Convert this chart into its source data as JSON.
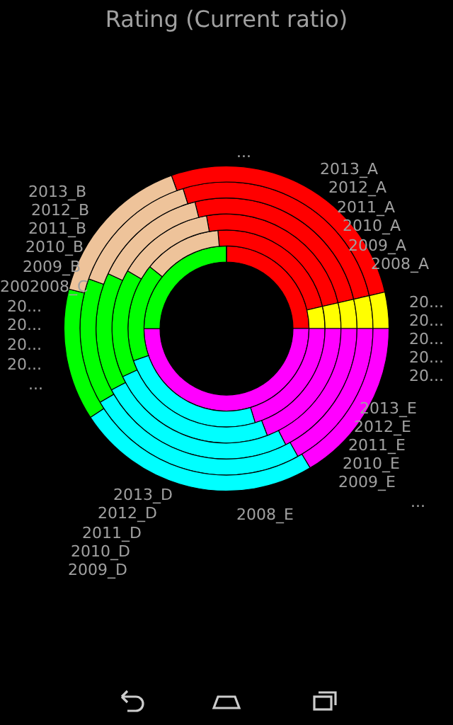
{
  "chart_data": {
    "type": "donut",
    "title": "Rating (Current ratio)",
    "categories": [
      null,
      null,
      null,
      null,
      null,
      null
    ],
    "colors": [
      "#ff0000",
      "#ffff00",
      "#ff00ff",
      "#00ffff",
      "#00ff00",
      "#eec39a"
    ],
    "series": [
      {
        "values": [
          25,
          0,
          50,
          0,
          25,
          0
        ]
      },
      {
        "values": [
          22.8,
          3.6,
          20.3,
          24.4,
          16.1,
          12.8
        ]
      },
      {
        "values": [
          24.2,
          3.6,
          19.2,
          23.9,
          15.3,
          13.8
        ]
      },
      {
        "values": [
          25.3,
          3.6,
          17.5,
          24.7,
          14.7,
          14.2
        ]
      },
      {
        "values": [
          26.2,
          3.6,
          16.9,
          24.7,
          13.9,
          14.7
        ]
      },
      {
        "values": [
          26.9,
          3.6,
          16.4,
          24.4,
          13.1,
          15.6
        ]
      }
    ],
    "annotations": [
      "...",
      "2013_A",
      "2012_A",
      "2011_A",
      "2010_A",
      "2009_A",
      "2008_A",
      "20...",
      "20...",
      "20...",
      "20...",
      "20...",
      "2013_E",
      "2012_E",
      "2011_E",
      "2010_E",
      "2009_E",
      "...",
      "2008_E",
      "2013_D",
      "2012_D",
      "2011_D",
      "2010_D",
      "2009_D",
      "2002008_C",
      "20...",
      "20...",
      "20...",
      "20...",
      "...",
      "2013_B",
      "2012_B",
      "2011_B",
      "2010_B",
      "2009_B"
    ],
    "legend": false
  }
}
